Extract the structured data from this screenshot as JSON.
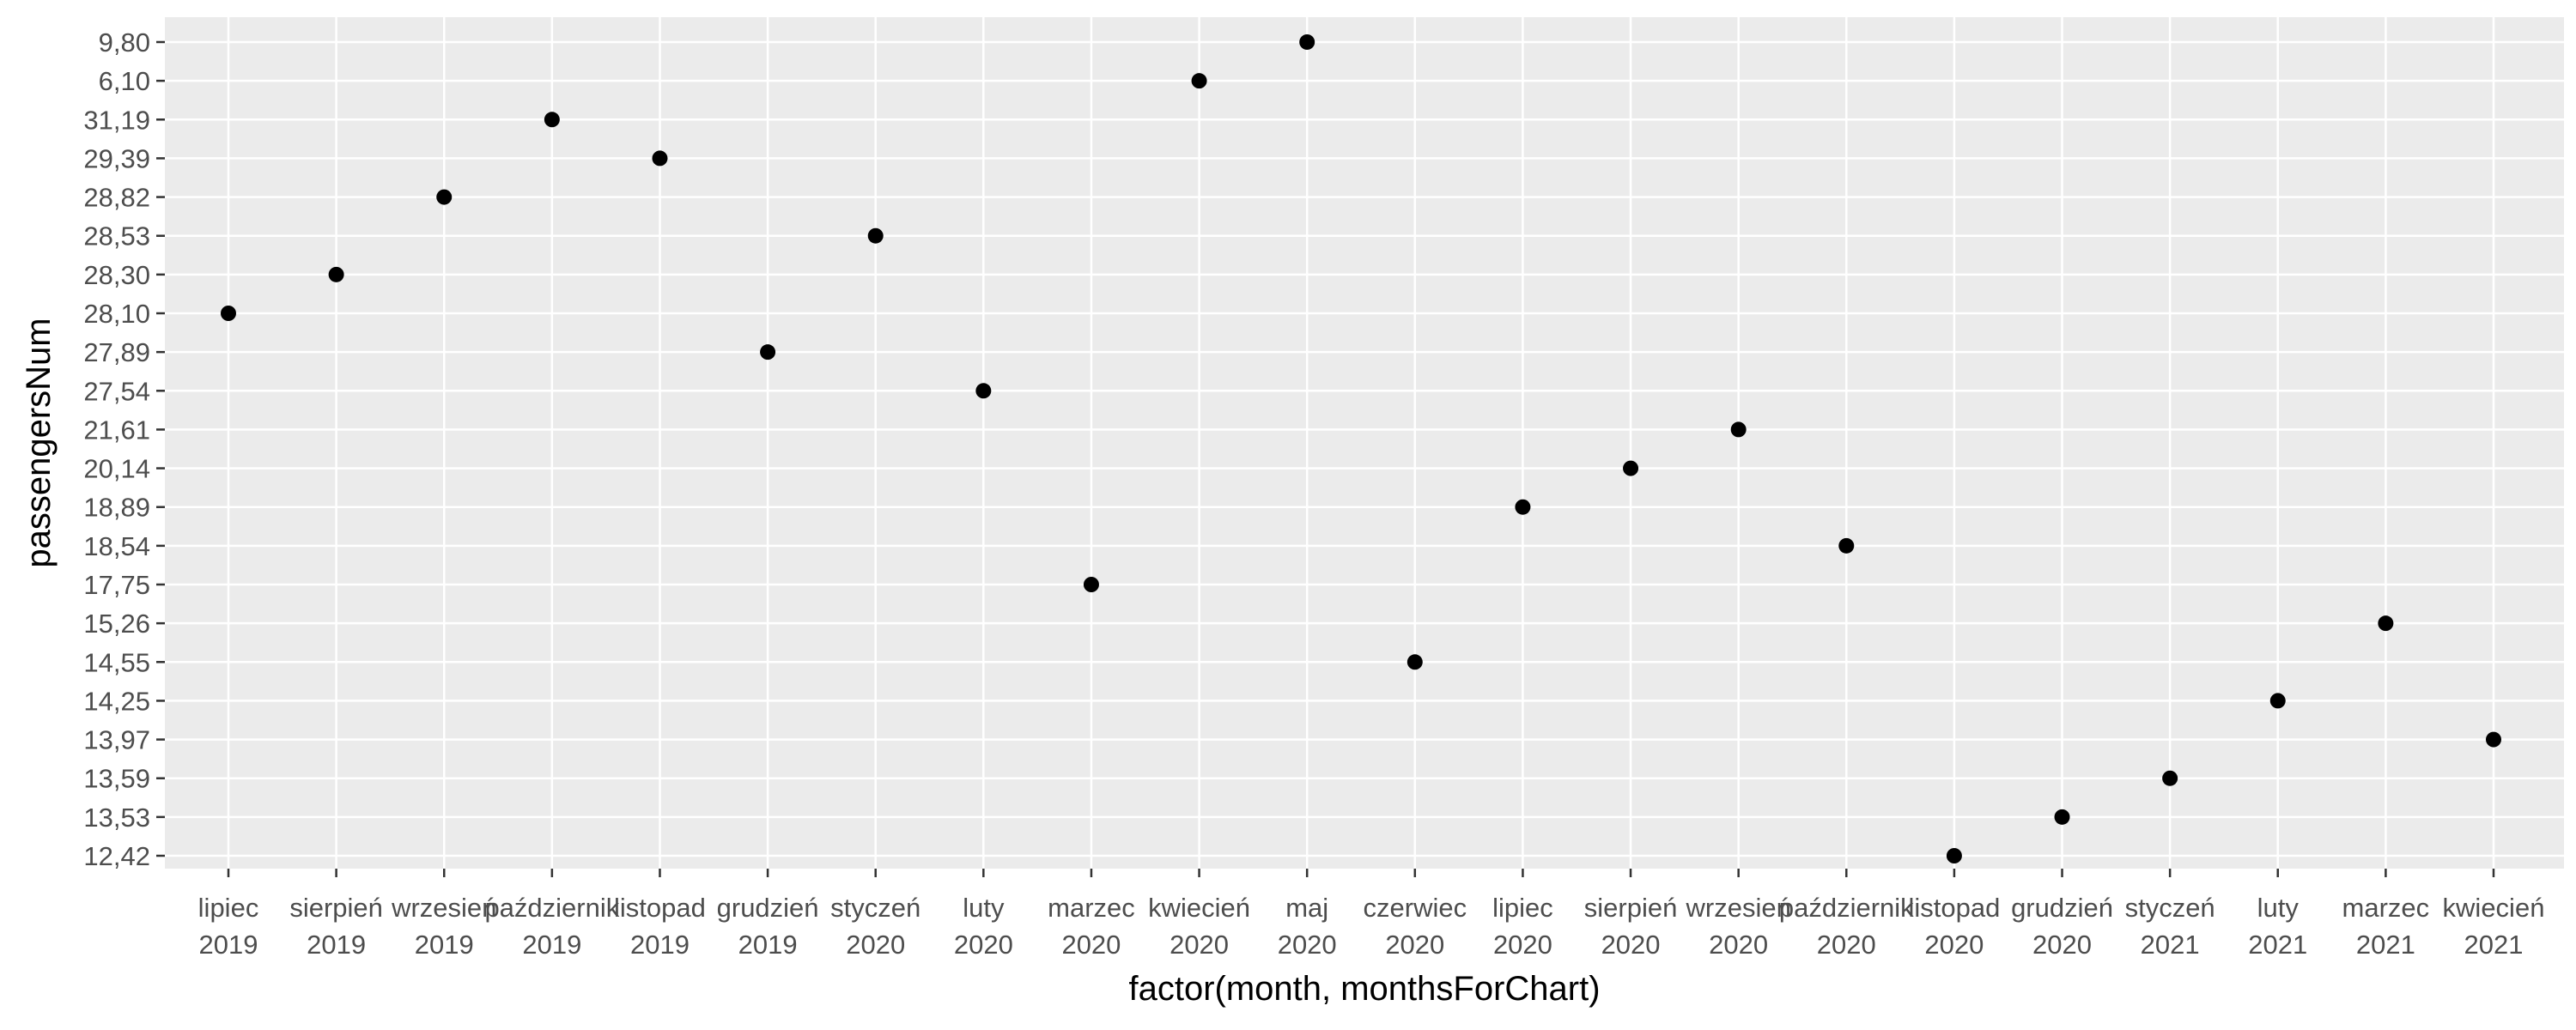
{
  "chart_data": {
    "type": "scatter",
    "title": "",
    "xlabel": "factor(month, monthsForChart)",
    "ylabel": "passengersNum",
    "grid": true,
    "legend": "none",
    "colors": {
      "panel": "#ebebeb",
      "grid": "#ffffff",
      "point": "#000000",
      "tick_text": "#4d4d4d"
    },
    "x_categories": [
      [
        "lipiec",
        "2019"
      ],
      [
        "sierpień",
        "2019"
      ],
      [
        "wrzesień",
        "2019"
      ],
      [
        "październik",
        "2019"
      ],
      [
        "listopad",
        "2019"
      ],
      [
        "grudzień",
        "2019"
      ],
      [
        "styczeń",
        "2020"
      ],
      [
        "luty",
        "2020"
      ],
      [
        "marzec",
        "2020"
      ],
      [
        "kwiecień",
        "2020"
      ],
      [
        "maj",
        "2020"
      ],
      [
        "czerwiec",
        "2020"
      ],
      [
        "lipiec",
        "2020"
      ],
      [
        "sierpień",
        "2020"
      ],
      [
        "wrzesień",
        "2020"
      ],
      [
        "październik",
        "2020"
      ],
      [
        "listopad",
        "2020"
      ],
      [
        "grudzień",
        "2020"
      ],
      [
        "styczeń",
        "2021"
      ],
      [
        "luty",
        "2021"
      ],
      [
        "marzec",
        "2021"
      ],
      [
        "kwiecień",
        "2021"
      ]
    ],
    "y_categories": [
      "12,42",
      "13,53",
      "13,59",
      "13,97",
      "14,25",
      "14,55",
      "15,26",
      "17,75",
      "18,54",
      "18,89",
      "20,14",
      "21,61",
      "27,54",
      "27,89",
      "28,10",
      "28,30",
      "28,53",
      "28,82",
      "29,39",
      "31,19",
      "6,10",
      "9,80"
    ],
    "points": [
      {
        "x": "lipiec 2019",
        "y": "28,10"
      },
      {
        "x": "sierpień 2019",
        "y": "28,30"
      },
      {
        "x": "wrzesień 2019",
        "y": "28,82"
      },
      {
        "x": "październik 2019",
        "y": "31,19"
      },
      {
        "x": "listopad 2019",
        "y": "29,39"
      },
      {
        "x": "grudzień 2019",
        "y": "27,89"
      },
      {
        "x": "styczeń 2020",
        "y": "28,53"
      },
      {
        "x": "luty 2020",
        "y": "27,54"
      },
      {
        "x": "marzec 2020",
        "y": "17,75"
      },
      {
        "x": "kwiecień 2020",
        "y": "6,10"
      },
      {
        "x": "maj 2020",
        "y": "9,80"
      },
      {
        "x": "czerwiec 2020",
        "y": "14,55"
      },
      {
        "x": "lipiec 2020",
        "y": "18,89"
      },
      {
        "x": "sierpień 2020",
        "y": "20,14"
      },
      {
        "x": "wrzesień 2020",
        "y": "21,61"
      },
      {
        "x": "październik 2020",
        "y": "18,54"
      },
      {
        "x": "listopad 2020",
        "y": "12,42"
      },
      {
        "x": "grudzień 2020",
        "y": "13,53"
      },
      {
        "x": "styczeń 2021",
        "y": "13,59"
      },
      {
        "x": "luty 2021",
        "y": "14,25"
      },
      {
        "x": "marzec 2021",
        "y": "15,26"
      },
      {
        "x": "kwiecień 2021",
        "y": "13,97"
      }
    ]
  }
}
